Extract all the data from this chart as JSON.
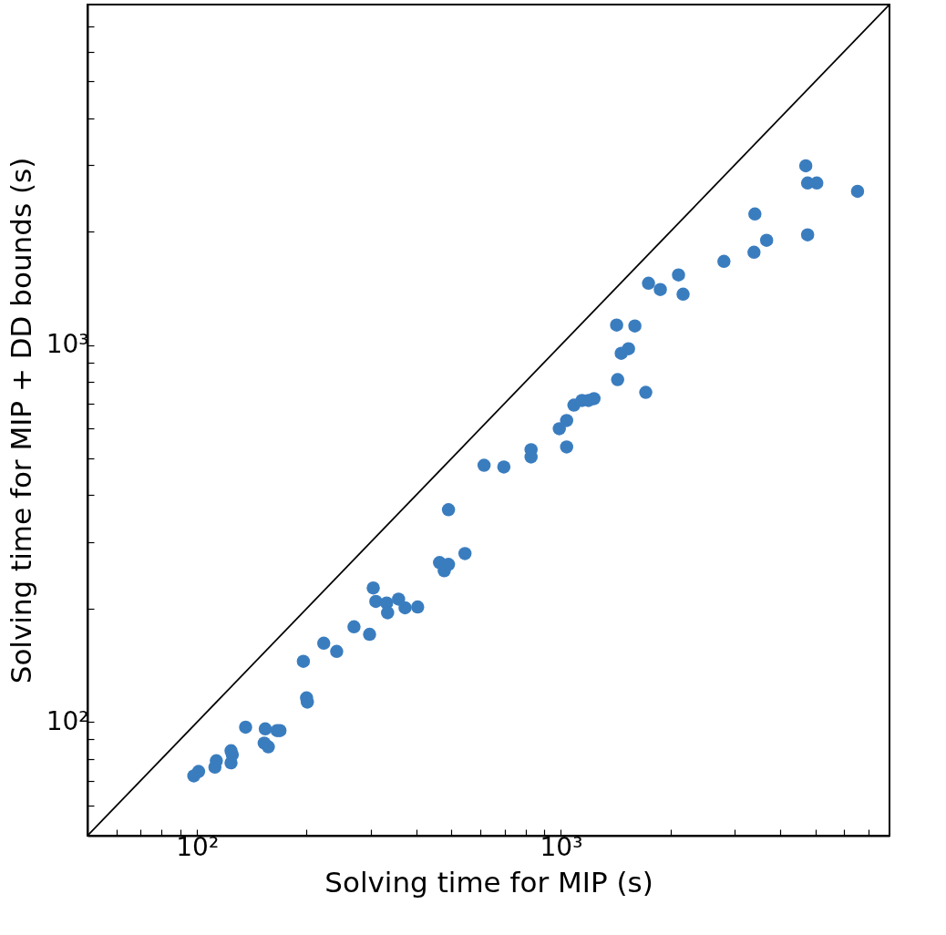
{
  "chart_data": {
    "type": "scatter",
    "xlabel": "Solving time for MIP (s)",
    "ylabel": "Solving time for MIP + DD bounds (s)",
    "log": "xy",
    "grid": false,
    "xlim": [
      50,
      8000
    ],
    "ylim": [
      50,
      8000
    ],
    "xticks": [
      {
        "value": 60,
        "label": null
      },
      {
        "value": 70,
        "label": null
      },
      {
        "value": 80,
        "label": null
      },
      {
        "value": 90,
        "label": null
      },
      {
        "value": 100,
        "label": "10²"
      },
      {
        "value": 200,
        "label": null
      },
      {
        "value": 300,
        "label": null
      },
      {
        "value": 400,
        "label": null
      },
      {
        "value": 500,
        "label": null
      },
      {
        "value": 600,
        "label": null
      },
      {
        "value": 700,
        "label": null
      },
      {
        "value": 800,
        "label": null
      },
      {
        "value": 900,
        "label": null
      },
      {
        "value": 1000,
        "label": "10³"
      },
      {
        "value": 2000,
        "label": null
      },
      {
        "value": 3000,
        "label": null
      },
      {
        "value": 4000,
        "label": null
      },
      {
        "value": 5000,
        "label": null
      },
      {
        "value": 6000,
        "label": null
      },
      {
        "value": 7000,
        "label": null
      }
    ],
    "yticks": [
      {
        "value": 60,
        "label": null
      },
      {
        "value": 70,
        "label": null
      },
      {
        "value": 80,
        "label": null
      },
      {
        "value": 90,
        "label": null
      },
      {
        "value": 100,
        "label": "10²"
      },
      {
        "value": 200,
        "label": null
      },
      {
        "value": 300,
        "label": null
      },
      {
        "value": 400,
        "label": null
      },
      {
        "value": 500,
        "label": null
      },
      {
        "value": 600,
        "label": null
      },
      {
        "value": 700,
        "label": null
      },
      {
        "value": 800,
        "label": null
      },
      {
        "value": 900,
        "label": null
      },
      {
        "value": 1000,
        "label": "10³"
      },
      {
        "value": 2000,
        "label": null
      },
      {
        "value": 3000,
        "label": null
      },
      {
        "value": 4000,
        "label": null
      },
      {
        "value": 5000,
        "label": null
      },
      {
        "value": 6000,
        "label": null
      },
      {
        "value": 7000,
        "label": null
      }
    ],
    "series": [
      {
        "marker": "circle",
        "color": "#3a7dbf",
        "x": [
          98,
          101,
          112,
          113,
          124,
          125,
          124,
          136,
          154,
          166,
          169,
          153,
          157,
          196,
          200,
          201,
          223,
          242,
          270,
          298,
          305,
          310,
          332,
          334,
          358,
          373,
          404,
          464,
          478,
          491,
          545,
          491,
          615,
          697,
          828,
          828,
          990,
          1037,
          1037,
          1086,
          1143,
          1191,
          1233,
          1423,
          1597,
          1465,
          1534,
          1432,
          1711,
          1741,
          1876,
          2105,
          2167,
          2806,
          3394,
          3676,
          3413,
          4765,
          4710,
          4765,
          5050,
          6536
        ],
        "values": [
          72,
          74,
          76,
          79,
          78,
          82,
          84,
          97,
          96,
          95,
          95,
          88,
          86,
          145,
          116,
          113,
          162,
          154,
          179,
          171,
          227,
          209,
          207,
          195,
          212,
          201,
          202,
          265,
          252,
          262,
          280,
          366,
          480,
          475,
          528,
          505,
          600,
          631,
          537,
          693,
          713,
          713,
          721,
          1130,
          1124,
          951,
          978,
          810,
          749,
          1459,
          1404,
          1535,
          1365,
          1667,
          1763,
          1896,
          2227,
          1960,
          2989,
          2690,
          2690,
          2558
        ]
      },
      {
        "type": "line",
        "color": "#000000",
        "line_style": "solid",
        "x": [
          50,
          8000
        ],
        "values": [
          50,
          8000
        ]
      }
    ]
  }
}
